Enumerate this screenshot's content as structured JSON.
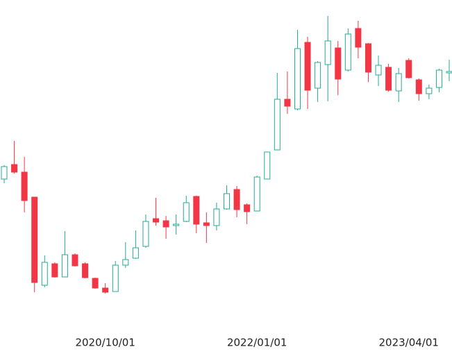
{
  "chart_data": {
    "type": "candlestick",
    "categories": [
      null,
      null,
      null,
      null,
      null,
      null,
      null,
      null,
      null,
      null,
      "2020/10/01",
      null,
      null,
      null,
      null,
      null,
      null,
      null,
      null,
      null,
      null,
      null,
      null,
      null,
      null,
      "2022/01/01",
      null,
      null,
      null,
      null,
      null,
      null,
      null,
      null,
      null,
      null,
      null,
      null,
      null,
      null,
      "2023/04/01",
      null,
      null,
      null,
      null
    ],
    "open": [
      202,
      223,
      212,
      176,
      49,
      80,
      61,
      93,
      80,
      59,
      45,
      40,
      78,
      88,
      105,
      145,
      142,
      135,
      141,
      177,
      139,
      135,
      159,
      187,
      165,
      156,
      202,
      244,
      317,
      303,
      399,
      333,
      367,
      391,
      359,
      419,
      397,
      352,
      363,
      329,
      373,
      345,
      325,
      334,
      355
    ],
    "high": [
      222,
      257,
      234,
      176,
      92,
      82,
      127,
      95,
      82,
      60,
      52,
      84,
      111,
      128,
      151,
      175,
      149,
      151,
      178,
      178,
      154,
      168,
      193,
      192,
      167,
      207,
      241,
      355,
      357,
      417,
      407,
      372,
      437,
      401,
      419,
      430,
      398,
      380,
      368,
      362,
      376,
      347,
      338,
      361,
      374
    ],
    "low": [
      196,
      210,
      154,
      39,
      46,
      60,
      61,
      76,
      59,
      44,
      37,
      40,
      74,
      87,
      103,
      135,
      116,
      122,
      140,
      124,
      110,
      128,
      158,
      147,
      137,
      156,
      202,
      244,
      296,
      301,
      303,
      313,
      314,
      323,
      357,
      376,
      342,
      336,
      328,
      313,
      347,
      315,
      317,
      327,
      343
    ],
    "close": [
      220,
      212,
      171,
      53,
      82,
      61,
      93,
      77,
      60,
      45,
      39,
      78,
      86,
      103,
      141,
      140,
      133,
      137,
      168,
      137,
      135,
      159,
      181,
      158,
      155,
      205,
      241,
      317,
      307,
      390,
      330,
      370,
      401,
      346,
      411,
      392,
      356,
      366,
      330,
      354,
      348,
      325,
      333,
      359,
      357
    ],
    "up_color": "#22ab94",
    "down_color": "#f23645",
    "ylim": [
      0,
      460
    ]
  }
}
